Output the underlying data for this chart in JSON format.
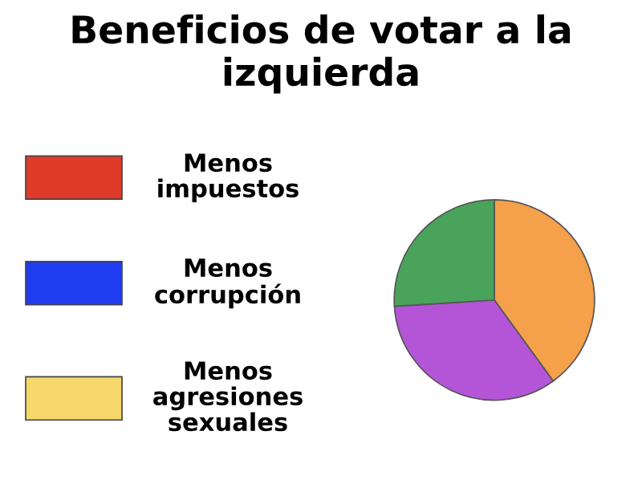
{
  "chart_data": [
    {
      "type": "pie",
      "title": "Beneficios de votar a la izquierda",
      "categories": [
        null,
        null,
        null
      ],
      "values": [
        40,
        34,
        26
      ],
      "colors": [
        "#f5a04a",
        "#b455d8",
        "#4aa35a"
      ]
    },
    {
      "type": "other",
      "annotations": [
        "Menos impuestos",
        "Menos corrupción",
        "Menos agresiones sexuales"
      ],
      "colors": [
        "#e03a2a",
        "#1f3cf0",
        "#f5d76a"
      ]
    }
  ]
}
